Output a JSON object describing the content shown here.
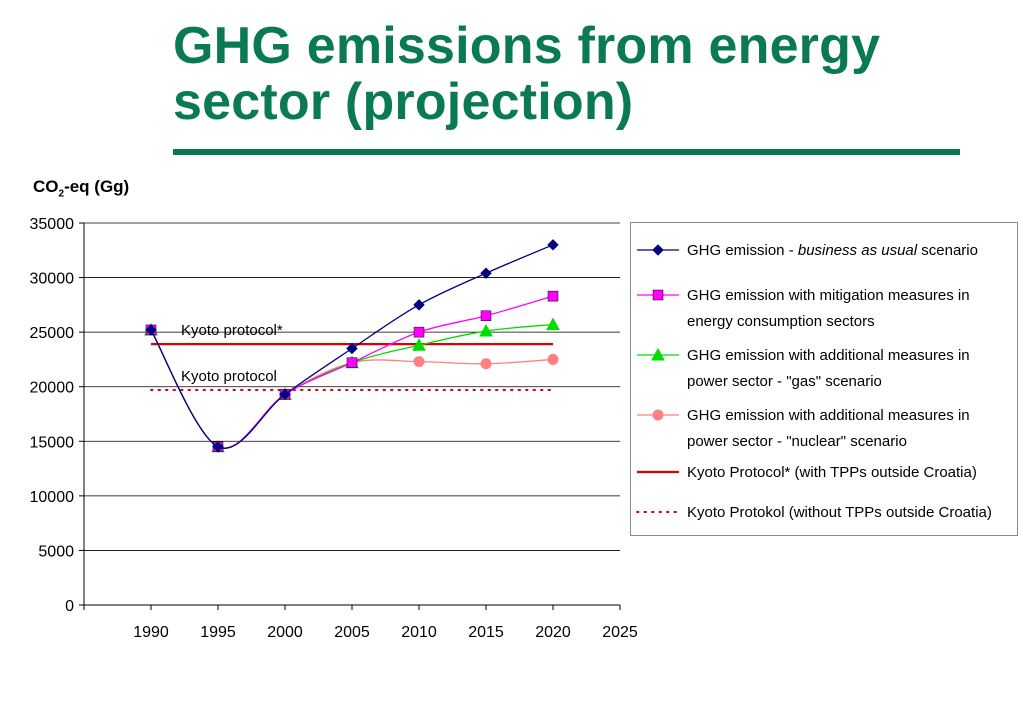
{
  "slide": {
    "title_line1": "GHG emissions from energy",
    "title_line2": "sector (projection)"
  },
  "chart_data": {
    "type": "line",
    "ylabel_main": "CO",
    "ylabel_sub": "2",
    "ylabel_rest": "-eq (Gg)",
    "xlim": [
      1985,
      2025
    ],
    "ylim": [
      0,
      35000
    ],
    "x_ticks": [
      1990,
      1995,
      2000,
      2005,
      2010,
      2015,
      2020,
      2025
    ],
    "y_ticks": [
      0,
      5000,
      10000,
      15000,
      20000,
      25000,
      30000,
      35000
    ],
    "grid": "horizontal",
    "legend_position": "right",
    "series": [
      {
        "name_prefix": "GHG emission - ",
        "name_italic": "business as usual",
        "name_suffix": " scenario",
        "color": "#000080",
        "marker": "diamond",
        "x": [
          1990,
          1995,
          2000,
          2005,
          2010,
          2015,
          2020
        ],
        "values": [
          25200,
          14500,
          19300,
          23500,
          27500,
          30400,
          33000
        ]
      },
      {
        "name_line1": "GHG emission with mitigation measures in",
        "name_line2": "energy consumption sectors",
        "color": "#ff00ff",
        "marker": "square",
        "x": [
          1990,
          1995,
          2000,
          2005,
          2010,
          2015,
          2020
        ],
        "values": [
          25200,
          14500,
          19300,
          22200,
          25000,
          26500,
          28300
        ]
      },
      {
        "name_line1": "GHG emission with additional measures in",
        "name_line2": "power sector - \"gas\" scenario",
        "color": "#00dd00",
        "marker": "triangle",
        "x": [
          1990,
          1995,
          2000,
          2005,
          2010,
          2015,
          2020
        ],
        "values": [
          25200,
          14500,
          19300,
          22200,
          23800,
          25100,
          25700
        ]
      },
      {
        "name_line1": "GHG emission with additional measures in",
        "name_line2": "power sector - \"nuclear\" scenario",
        "color": "#ff8080",
        "marker": "circle",
        "x": [
          1990,
          1995,
          2000,
          2005,
          2010,
          2015,
          2020
        ],
        "values": [
          25200,
          14500,
          19300,
          22200,
          22300,
          22100,
          22500
        ]
      }
    ],
    "reference_lines": [
      {
        "label": "Kyoto protocol*",
        "legend_label": "Kyoto Protocol* (with TPPs outside Croatia)",
        "value": 23900,
        "x_range": [
          1990,
          2020
        ],
        "style": "solid",
        "color": "#dd0000"
      },
      {
        "label": "Kyoto protocol",
        "legend_label": "Kyoto Protokol (without TPPs outside Croatia)",
        "value": 19700,
        "x_range": [
          1990,
          2020
        ],
        "style": "dotted",
        "color": "#dd0000"
      }
    ]
  }
}
